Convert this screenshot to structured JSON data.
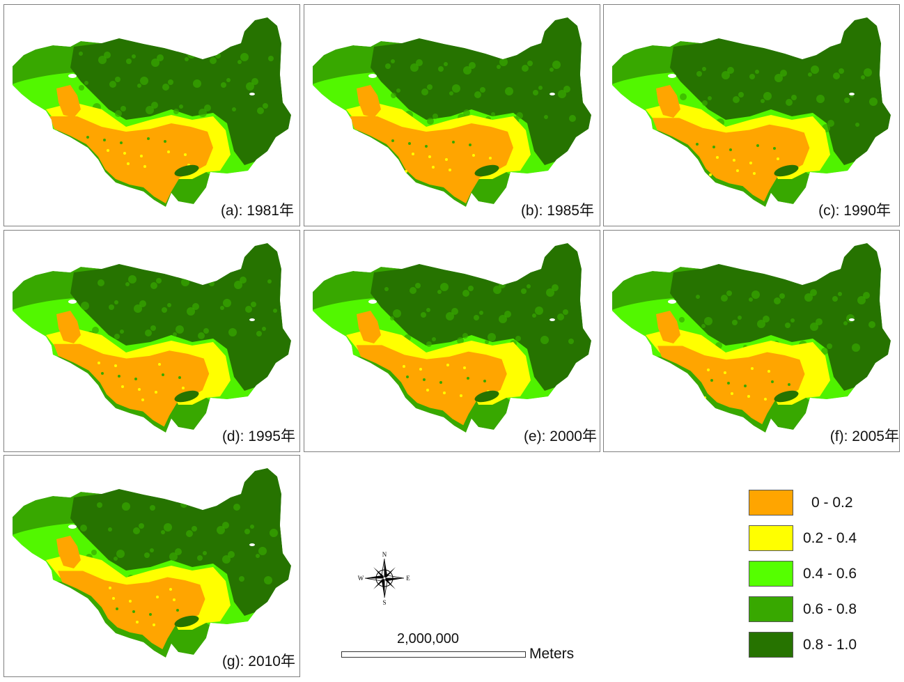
{
  "maps": [
    {
      "id": "a",
      "label": "(a): 1981年",
      "stage": 0
    },
    {
      "id": "b",
      "label": "(b): 1985年",
      "stage": 1
    },
    {
      "id": "c",
      "label": "(c): 1990年",
      "stage": 2
    },
    {
      "id": "d",
      "label": "(d): 1995年",
      "stage": 2
    },
    {
      "id": "e",
      "label": "(e): 2000年",
      "stage": 3
    },
    {
      "id": "f",
      "label": "(f): 2005年",
      "stage": 4
    },
    {
      "id": "g",
      "label": "(g): 2010年",
      "stage": 4
    }
  ],
  "legend": [
    {
      "label": "0 - 0.2",
      "color": "#ffa500"
    },
    {
      "label": "0.2 - 0.4",
      "color": "#ffff00"
    },
    {
      "label": "0.4 - 0.6",
      "color": "#55ff00"
    },
    {
      "label": "0.6 - 0.8",
      "color": "#38a800"
    },
    {
      "label": "0.8 - 1.0",
      "color": "#267300"
    }
  ],
  "scale_bar": {
    "value": "2,000,000",
    "unit": "Meters"
  },
  "compass": {
    "n": "N",
    "s": "S",
    "e": "E",
    "w": "W"
  }
}
